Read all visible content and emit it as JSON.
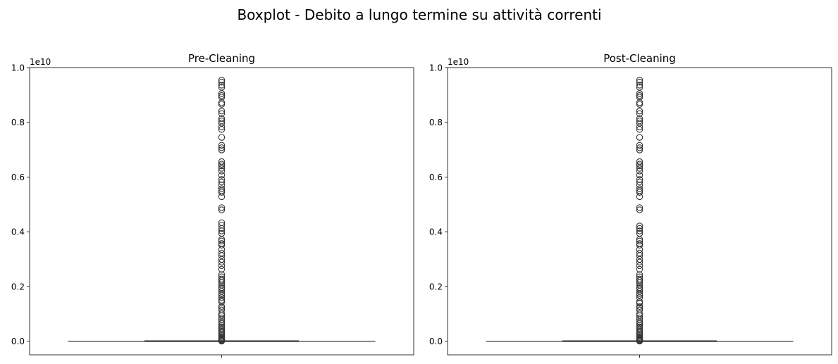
{
  "figure": {
    "suptitle": "Boxplot - Debito a lungo termine su attività correnti"
  },
  "chart_data": [
    {
      "type": "boxplot",
      "title": "Pre-Cleaning",
      "xlabel": "",
      "ylabel": "",
      "ylim": [
        -0.05,
        1.0
      ],
      "y_ticks": [
        0.0,
        0.2,
        0.4,
        0.6,
        0.8,
        1.0
      ],
      "y_tick_labels": [
        "0.0",
        "0.2",
        "0.4",
        "0.6",
        "0.8",
        "1.0"
      ],
      "y_offset_label": "1e10",
      "units_scale": 10000000000,
      "grid": false,
      "box": {
        "q1": 0.0,
        "median": 0.0,
        "q3": 0.0,
        "whisker_low": 0.0,
        "whisker_high": 0.0
      },
      "outliers": [
        9.54,
        9.47,
        9.36,
        9.28,
        9.05,
        8.98,
        8.92,
        8.72,
        8.66,
        8.41,
        8.32,
        8.13,
        8.05,
        7.97,
        7.83,
        7.74,
        7.45,
        7.16,
        7.07,
        6.99,
        6.56,
        6.47,
        6.41,
        6.32,
        6.22,
        6.07,
        5.91,
        5.82,
        5.71,
        5.57,
        5.5,
        5.44,
        5.28,
        4.88,
        4.8,
        4.33,
        4.24,
        4.12,
        4.03,
        3.94,
        3.72,
        3.66,
        3.57,
        3.51,
        3.35,
        3.22,
        3.13,
        2.99,
        2.89,
        2.76,
        2.63,
        2.43,
        2.35,
        2.27,
        2.21,
        2.14,
        2.05,
        1.96,
        1.91,
        1.83,
        1.74,
        1.68,
        1.59,
        1.5,
        1.44,
        1.27,
        1.21,
        1.14,
        1.0,
        0.93,
        0.85,
        0.78,
        0.7,
        0.64,
        0.57,
        0.52,
        0.46,
        0.4,
        0.35,
        0.3,
        0.25,
        0.2,
        0.15,
        0.11,
        0.08,
        0.05,
        0.03,
        0.02,
        0.01,
        0.005
      ]
    },
    {
      "type": "boxplot",
      "title": "Post-Cleaning",
      "xlabel": "",
      "ylabel": "",
      "ylim": [
        -0.05,
        1.0
      ],
      "y_ticks": [
        0.0,
        0.2,
        0.4,
        0.6,
        0.8,
        1.0
      ],
      "y_tick_labels": [
        "0.0",
        "0.2",
        "0.4",
        "0.6",
        "0.8",
        "1.0"
      ],
      "y_offset_label": "1e10",
      "units_scale": 10000000000,
      "grid": false,
      "box": {
        "q1": 0.0,
        "median": 0.0,
        "q3": 0.0,
        "whisker_low": 0.0,
        "whisker_high": 0.0
      },
      "outliers": [
        9.54,
        9.47,
        9.36,
        9.28,
        9.05,
        8.98,
        8.92,
        8.72,
        8.66,
        8.41,
        8.32,
        8.13,
        8.05,
        7.97,
        7.83,
        7.74,
        7.45,
        7.16,
        7.07,
        6.99,
        6.56,
        6.47,
        6.41,
        6.32,
        6.22,
        6.07,
        5.91,
        5.82,
        5.71,
        5.57,
        5.5,
        5.44,
        5.28,
        4.88,
        4.8,
        4.21,
        4.12,
        4.03,
        3.94,
        3.72,
        3.66,
        3.57,
        3.51,
        3.35,
        3.22,
        3.13,
        2.99,
        2.89,
        2.76,
        2.63,
        2.43,
        2.35,
        2.27,
        2.21,
        2.14,
        2.05,
        1.96,
        1.91,
        1.83,
        1.74,
        1.68,
        1.59,
        1.44,
        1.39,
        1.27,
        1.21,
        1.14,
        1.0,
        0.93,
        0.85,
        0.78,
        0.7,
        0.64,
        0.57,
        0.52,
        0.46,
        0.4,
        0.35,
        0.3,
        0.25,
        0.2,
        0.15,
        0.11,
        0.08,
        0.05,
        0.03,
        0.02,
        0.01,
        0.005
      ]
    }
  ]
}
